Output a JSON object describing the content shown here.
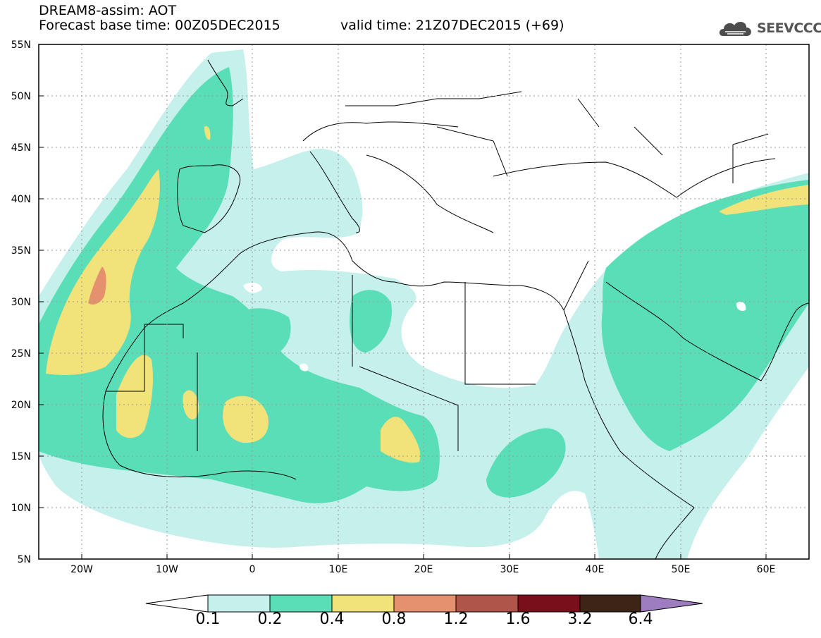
{
  "header": {
    "line1": "DREAM8-assim: AOT",
    "line2_left": "Forecast base time: 00Z05DEC2015",
    "line2_right": "valid time: 21Z07DEC2015 (+69)",
    "logo_text": "SEEVCCC"
  },
  "map": {
    "lat_labels": [
      "55N",
      "50N",
      "45N",
      "40N",
      "35N",
      "30N",
      "25N",
      "20N",
      "15N",
      "10N",
      "5N"
    ],
    "lon_labels": [
      "20W",
      "10W",
      "0",
      "10E",
      "20E",
      "30E",
      "40E",
      "50E",
      "60E"
    ],
    "lat_range": [
      5,
      55
    ],
    "lon_range": [
      -25,
      65
    ],
    "grid": "dotted",
    "variable": "AOT"
  },
  "colorbar": {
    "labels": [
      "0.1",
      "0.2",
      "0.4",
      "0.8",
      "1.2",
      "1.6",
      "3.2",
      "6.4"
    ],
    "colors": [
      "#c6f0ec",
      "#5adeb7",
      "#f2e27a",
      "#e6916e",
      "#b0554a",
      "#7a0f1c",
      "#3d2416",
      "#9d7cc0"
    ],
    "under_color": "#ffffff"
  }
}
